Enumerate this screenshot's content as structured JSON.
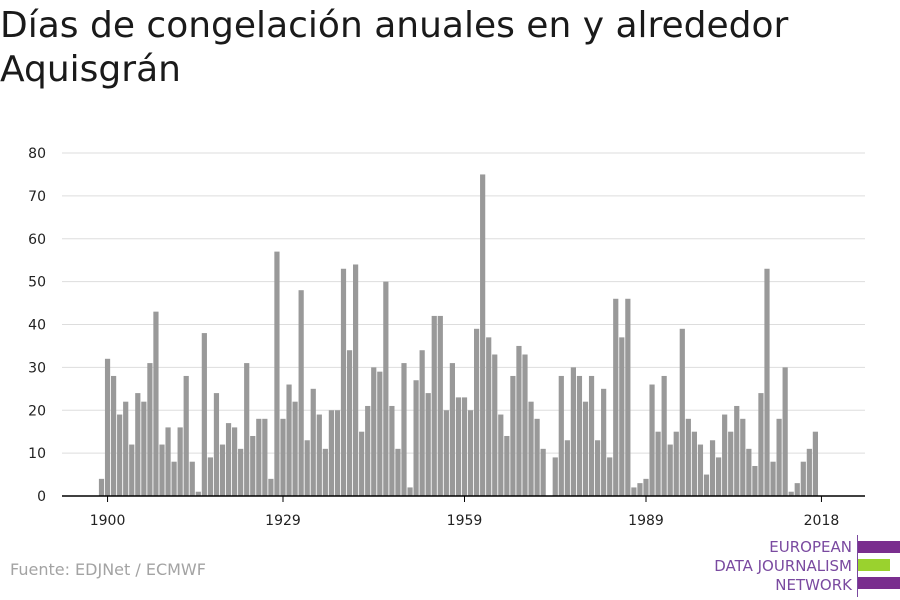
{
  "title": "Días de congelación anuales en y alrededor Aquisgrán",
  "source": "Fuente: EDJNet / ECMWF",
  "logo": {
    "lines": [
      "EUROPEAN",
      "DATA JOURNALISM",
      "NETWORK"
    ],
    "colors": {
      "purple": "#7a2e8e",
      "green": "#9ad22e",
      "text": "#7a4aa0"
    }
  },
  "colors": {
    "bar": "#999999",
    "grid": "#dddddd",
    "axis": "#000000"
  },
  "chart_data": {
    "type": "bar",
    "title": "Días de congelación anuales en y alrededor Aquisgrán",
    "xlabel": "",
    "ylabel": "",
    "ylim": [
      0,
      80
    ],
    "yticks": [
      0,
      10,
      20,
      30,
      40,
      50,
      60,
      70,
      80
    ],
    "xticks": [
      1900,
      1929,
      1959,
      1989,
      2018
    ],
    "grid": true,
    "x": [
      1899,
      1900,
      1901,
      1902,
      1903,
      1904,
      1905,
      1906,
      1907,
      1908,
      1909,
      1910,
      1911,
      1912,
      1913,
      1914,
      1915,
      1916,
      1917,
      1918,
      1919,
      1920,
      1921,
      1922,
      1923,
      1924,
      1925,
      1926,
      1927,
      1928,
      1929,
      1930,
      1931,
      1932,
      1933,
      1934,
      1935,
      1936,
      1937,
      1938,
      1939,
      1940,
      1941,
      1942,
      1943,
      1944,
      1945,
      1946,
      1947,
      1948,
      1949,
      1950,
      1951,
      1952,
      1953,
      1954,
      1955,
      1956,
      1957,
      1958,
      1959,
      1960,
      1961,
      1962,
      1963,
      1964,
      1965,
      1966,
      1967,
      1968,
      1969,
      1970,
      1971,
      1972,
      1973,
      1974,
      1975,
      1976,
      1977,
      1978,
      1979,
      1980,
      1981,
      1982,
      1983,
      1984,
      1985,
      1986,
      1987,
      1988,
      1989,
      1990,
      1991,
      1992,
      1993,
      1994,
      1995,
      1996,
      1997,
      1998,
      1999,
      2000,
      2001,
      2002,
      2003,
      2004,
      2005,
      2006,
      2007,
      2008,
      2009,
      2010,
      2011,
      2012,
      2013,
      2014,
      2015,
      2016,
      2017,
      2018
    ],
    "values": [
      4,
      32,
      28,
      19,
      22,
      12,
      24,
      22,
      31,
      43,
      12,
      16,
      8,
      16,
      28,
      8,
      1,
      38,
      9,
      24,
      12,
      17,
      16,
      11,
      31,
      14,
      18,
      18,
      4,
      57,
      18,
      26,
      22,
      48,
      13,
      25,
      19,
      11,
      20,
      20,
      53,
      34,
      54,
      15,
      21,
      30,
      29,
      50,
      21,
      11,
      31,
      2,
      27,
      34,
      24,
      42,
      42,
      20,
      31,
      23,
      23,
      20,
      39,
      75,
      37,
      33,
      19,
      14,
      28,
      35,
      33,
      22,
      18,
      11,
      0,
      9,
      28,
      13,
      30,
      28,
      22,
      28,
      13,
      25,
      9,
      46,
      37,
      46,
      2,
      3,
      4,
      26,
      15,
      28,
      12,
      15,
      39,
      18,
      15,
      12,
      5,
      13,
      9,
      19,
      15,
      21,
      18,
      11,
      7,
      24,
      53,
      8,
      18,
      30,
      1,
      3,
      8,
      11,
      15,
      0
    ]
  }
}
